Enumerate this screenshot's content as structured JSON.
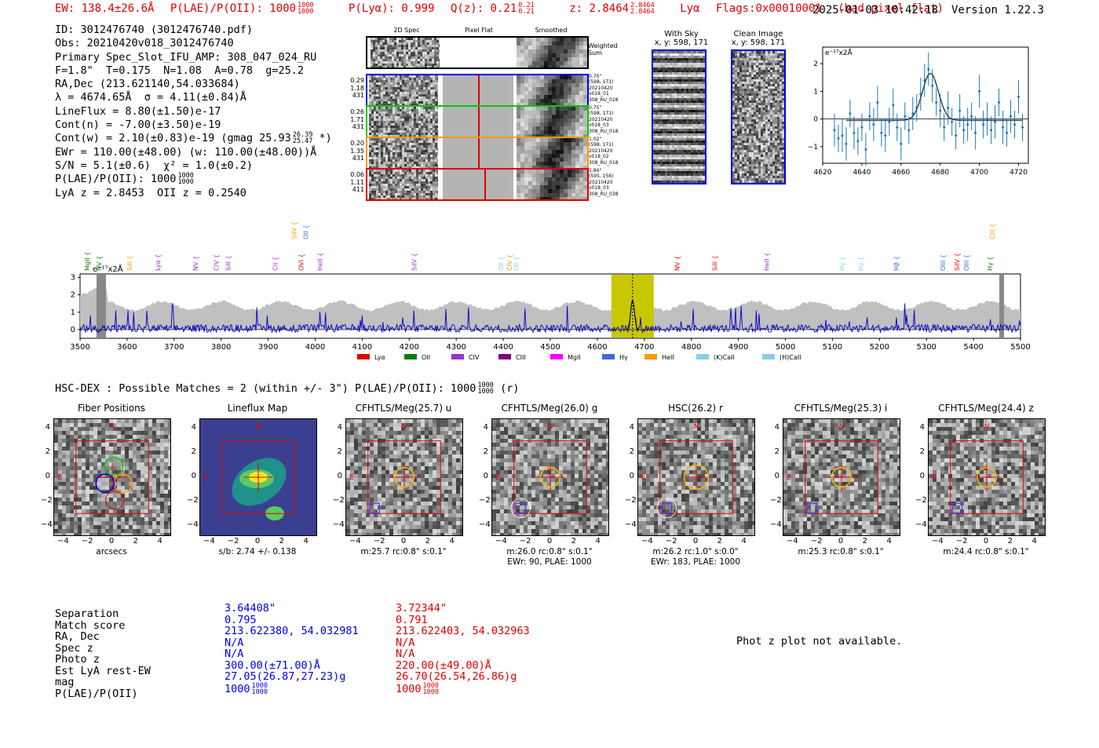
{
  "header": {
    "ew": "EW: 138.4±26.6Å",
    "plae_label": "P(LAE)/P(OII): 1000",
    "plae_hi": "1000",
    "plae_lo": "1000",
    "plya": "P(Lyα): 0.999",
    "qz_label": "Q(z): 0.21",
    "qz_hi": "0.21",
    "qz_lo": "0.21",
    "z_label": "z: 2.8464",
    "z_hi": "2.8464",
    "z_lo": "2.8464",
    "line": "Lyα",
    "flags": "Flags:0x00010001",
    "flag_note": "(bad pixel flat)",
    "timestamp": "2025-01-03 10:42:18",
    "version": "Version 1.22.3"
  },
  "info": {
    "id": "ID: 3012476740 (3012476740.pdf)",
    "obs": "Obs: 20210420v018_3012476740",
    "primary": "Primary Spec_Slot_IFU_AMP: 308_047_024_RU",
    "params": "F=1.8\"  T=0.175  N=1.08  A=0.78  g=25.2",
    "radec": "RA,Dec (213.621140,54.033684)",
    "lambda": "λ = 4674.65Å  σ = 4.11(±0.84)Å",
    "lineflux": "LineFlux = 8.80(±1.50)e-17",
    "contn": "Cont(n) = -7.00(±3.50)e-19",
    "contw": "Cont(w) = 2.10(±0.83)e-19 (gmag 25.93",
    "contw_hi": "26.39",
    "contw_lo": "25.47",
    "contw_end": "*)",
    "ewr": "EWr = 110.00(±48.00) (w: 110.00(±48.00))Å",
    "sn": "S/N = 5.1(±0.6)  χ² = 1.0(±0.2)",
    "plae": "P(LAE)/P(OII): 1000",
    "plae_hi": "1000",
    "plae_lo": "1000",
    "lya_z": "LyA z = 2.8453  OII z = 0.2540"
  },
  "cutouts": {
    "col_2d": "2D Spec",
    "col_flat": "Pixel Flat",
    "col_smooth": "Smoothed",
    "weighted": "Weighted Sum",
    "rows": [
      {
        "w": "0.29",
        "b": "1.18",
        "n": "431",
        "note": "0.70\"\n(598, 171)\n20210420\nv018_01\n308_RU_018",
        "color": "#0000e0"
      },
      {
        "w": "0.26",
        "b": "1.71",
        "n": "431",
        "note": "0.75\"\n(598, 171)\n20210420\nv018_03\n308_RU_018",
        "color": "#00cc00"
      },
      {
        "w": "0.20",
        "b": "1.35",
        "n": "431",
        "note": "1.02\"\n(598, 171)\n20210420\nv018_02\n308_RU_018",
        "color": "#ff9900"
      },
      {
        "w": "0.06",
        "b": "1.11",
        "n": "411",
        "note": "1.84\"\n(595, 156)\n20210420\nv018_03\n308_RU_038",
        "color": "#e00000"
      }
    ]
  },
  "sky": {
    "with_sky_title": "With Sky",
    "with_sky_xy": "x, y: 598, 171",
    "clean_title": "Clean Image",
    "clean_xy": "x, y: 598, 171"
  },
  "zoom_chart": {
    "unit": "e⁻¹⁷x2Å"
  },
  "hsc": {
    "line": "HSC-DEX : Possible Matches = 2 (within +/- 3\")  P(LAE)/P(OII): 1000",
    "hi": "1000",
    "lo": "1000",
    "suffix": "(r)"
  },
  "panels": [
    {
      "title": "Fiber Positions",
      "caption": "arcsecs",
      "caption2": ""
    },
    {
      "title": "Lineflux Map",
      "caption": "s/b: 2.74 +/- 0.138",
      "caption2": ""
    },
    {
      "title": "CFHTLS/Meg(25.7) u",
      "caption": "m:25.7 rc:0.8\"  s:0.1\"",
      "caption2": ""
    },
    {
      "title": "CFHTLS/Meg(26.0) g",
      "caption": "m:26.0 rc:0.8\"  s:0.1\"",
      "caption2": "EWr: 90, PLAE: 1000"
    },
    {
      "title": "HSC(26.2) r",
      "caption": "m:26.2 rc:1.0\"  s:0.0\"",
      "caption2": "EWr: 183, PLAE: 1000"
    },
    {
      "title": "CFHTLS/Meg(25.3) i",
      "caption": "m:25.3 rc:0.8\"  s:0.1\"",
      "caption2": ""
    },
    {
      "title": "CFHTLS/Meg(24.4) z",
      "caption": "m:24.4 rc:0.8\"  s:0.1\"",
      "caption2": ""
    }
  ],
  "panel_ticks": [
    "4",
    "2",
    "0",
    "−2",
    "−4"
  ],
  "panel_xticks": [
    "−4",
    "−2",
    "0",
    "2",
    "4"
  ],
  "panel_marks": {
    "north": "N",
    "east": "E"
  },
  "matches": {
    "labels": [
      "Separation",
      "Match score",
      "RA, Dec",
      "Spec z",
      "Photo z",
      "Est LyA rest-EW",
      "mag",
      "P(LAE)/P(OII)"
    ],
    "m1": [
      "3.64408\"",
      "0.795",
      "213.622380, 54.032981",
      "N/A",
      "N/A",
      "300.00(±71.00)Å",
      "27.05(26.87,27.23)g",
      "1000"
    ],
    "m1_plae_hi": "1000",
    "m1_plae_lo": "1000",
    "m2": [
      "3.72344\"",
      "0.791",
      "213.622403, 54.032963",
      "N/A",
      "N/A",
      "220.00(±49.00)Å",
      "26.70(26.54,26.86)g",
      "1000"
    ],
    "m2_plae_hi": "1000",
    "m2_plae_lo": "1000",
    "photz_note": "Phot z plot not available."
  },
  "colors": {
    "accent_red": "#e00000",
    "accent_blue": "#0000e0",
    "spec_blue": "#0000cc",
    "zoom_blue": "#1f77b4",
    "highlight": "#c8c800"
  },
  "chart_data": [
    {
      "type": "scatter",
      "title": "",
      "ylabel": "e⁻¹⁷x2Å",
      "xlabel": "",
      "xlim": [
        4620,
        4725
      ],
      "ylim": [
        -1.6,
        2.6
      ],
      "xticks": [
        4620,
        4640,
        4660,
        4680,
        4700,
        4720
      ],
      "yticks": [
        -1,
        0,
        1,
        2
      ],
      "x": [
        4626,
        4628,
        4630,
        4632,
        4634,
        4636,
        4638,
        4640,
        4642,
        4644,
        4646,
        4648,
        4650,
        4652,
        4654,
        4656,
        4658,
        4660,
        4662,
        4664,
        4666,
        4668,
        4670,
        4672,
        4674,
        4676,
        4678,
        4680,
        4682,
        4684,
        4686,
        4688,
        4690,
        4692,
        4694,
        4696,
        4698,
        4700,
        4702,
        4704,
        4706,
        4708,
        4710,
        4712,
        4714,
        4716,
        4718,
        4720,
        4722
      ],
      "y": [
        -0.4,
        -0.7,
        -0.6,
        -0.9,
        0.2,
        -0.5,
        -0.8,
        -0.3,
        -1.1,
        0.1,
        -0.2,
        0.6,
        -0.5,
        -0.6,
        -0.1,
        0.5,
        -0.3,
        -0.9,
        0.1,
        -0.4,
        0.2,
        0.4,
        0.9,
        1.4,
        1.8,
        1.2,
        0.6,
        0.3,
        -0.3,
        0.4,
        -0.1,
        -0.6,
        0.3,
        -0.4,
        -0.2,
        0.1,
        -0.5,
        1.0,
        -0.2,
        0.0,
        -0.4,
        -0.1,
        0.6,
        -0.3,
        -0.5,
        0.1,
        -0.2,
        0.8,
        -0.3
      ],
      "yerr": [
        0.6,
        0.5,
        0.6,
        0.6,
        0.5,
        0.6,
        0.5,
        0.5,
        0.6,
        0.5,
        0.6,
        0.6,
        0.5,
        0.6,
        0.5,
        0.6,
        0.5,
        0.6,
        0.5,
        0.5,
        0.6,
        0.5,
        0.6,
        0.6,
        0.6,
        0.6,
        0.5,
        0.6,
        0.5,
        0.6,
        0.5,
        0.5,
        0.6,
        0.5,
        0.6,
        0.5,
        0.6,
        0.6,
        0.5,
        0.6,
        0.5,
        0.6,
        0.5,
        0.6,
        0.5,
        0.6,
        0.5,
        0.6,
        0.5
      ],
      "fit": {
        "center": 4675,
        "amplitude": 1.7,
        "sigma": 4.11,
        "baseline": -0.05
      }
    },
    {
      "type": "line",
      "title": "",
      "ylabel": "e⁻¹⁷x2Å",
      "xlabel": "",
      "xlim": [
        3500,
        5500
      ],
      "ylim": [
        -0.5,
        3.2
      ],
      "xticks": [
        3500,
        3600,
        3700,
        3800,
        3900,
        4000,
        4100,
        4200,
        4300,
        4400,
        4500,
        4600,
        4700,
        4800,
        4900,
        5000,
        5100,
        5200,
        5300,
        5400,
        5500
      ],
      "yticks": [
        0,
        1,
        2,
        3
      ],
      "highlight_range": [
        4630,
        4720
      ],
      "line_center": 4675,
      "line_peak": 1.7,
      "lines_above": [
        {
          "x": 3520,
          "label": "MgII",
          "color": "#008000"
        },
        {
          "x": 3545,
          "label": "NV",
          "color": "#008000"
        },
        {
          "x": 3610,
          "label": "SiII",
          "color": "#ff9900"
        },
        {
          "x": 3670,
          "label": "Lyα",
          "color": "#9933cc"
        },
        {
          "x": 3750,
          "label": "NV",
          "color": "#9933cc"
        },
        {
          "x": 3795,
          "label": "CIV",
          "color": "#9933cc"
        },
        {
          "x": 3820,
          "label": "SiII",
          "color": "#9933cc"
        },
        {
          "x": 3920,
          "label": "CII",
          "color": "#ff00ff"
        },
        {
          "x": 3975,
          "label": "OVI",
          "color": "#e00000"
        },
        {
          "x": 4015,
          "label": "HeII",
          "color": "#9933cc"
        },
        {
          "x": 4215,
          "label": "SiIV",
          "color": "#9933cc"
        },
        {
          "x": 4400,
          "label": "OII",
          "color": "#87ceeb"
        },
        {
          "x": 4418,
          "label": "CIV",
          "color": "#ff9900"
        },
        {
          "x": 4432,
          "label": "OII",
          "color": "#87ceeb"
        },
        {
          "x": 4775,
          "label": "NV",
          "color": "#e00000"
        },
        {
          "x": 4855,
          "label": "SiII",
          "color": "#e00000"
        },
        {
          "x": 4965,
          "label": "HeII",
          "color": "#9933cc"
        },
        {
          "x": 5125,
          "label": "Hγ",
          "color": "#87ceeb"
        },
        {
          "x": 5165,
          "label": "Hγ",
          "color": "#87ceeb"
        },
        {
          "x": 5240,
          "label": "Hβ",
          "color": "#4169e1"
        },
        {
          "x": 5340,
          "label": "OIII",
          "color": "#4169e1"
        },
        {
          "x": 5370,
          "label": "SiIV",
          "color": "#e00000"
        },
        {
          "x": 5390,
          "label": "OIII",
          "color": "#4169e1"
        },
        {
          "x": 5440,
          "label": "Hγ",
          "color": "#008000"
        }
      ],
      "lines_top": [
        {
          "x": 3960,
          "label": "SiIV",
          "color": "#ff9900"
        },
        {
          "x": 3985,
          "label": "OII",
          "color": "#4169e1"
        },
        {
          "x": 5445,
          "label": "CIII",
          "color": "#ff9900"
        }
      ],
      "legend": [
        {
          "label": "Lyα",
          "color": "#e00000"
        },
        {
          "label": "OII",
          "color": "#008000"
        },
        {
          "label": "CIV",
          "color": "#9933cc"
        },
        {
          "label": "CIII",
          "color": "#800080"
        },
        {
          "label": "MgII",
          "color": "#ff00ff"
        },
        {
          "label": "Hγ",
          "color": "#4169e1"
        },
        {
          "label": "HeII",
          "color": "#ff9900"
        },
        {
          "label": "(K)CaII",
          "color": "#87ceeb"
        },
        {
          "label": "(H)CaII",
          "color": "#87ceeb"
        }
      ]
    }
  ]
}
